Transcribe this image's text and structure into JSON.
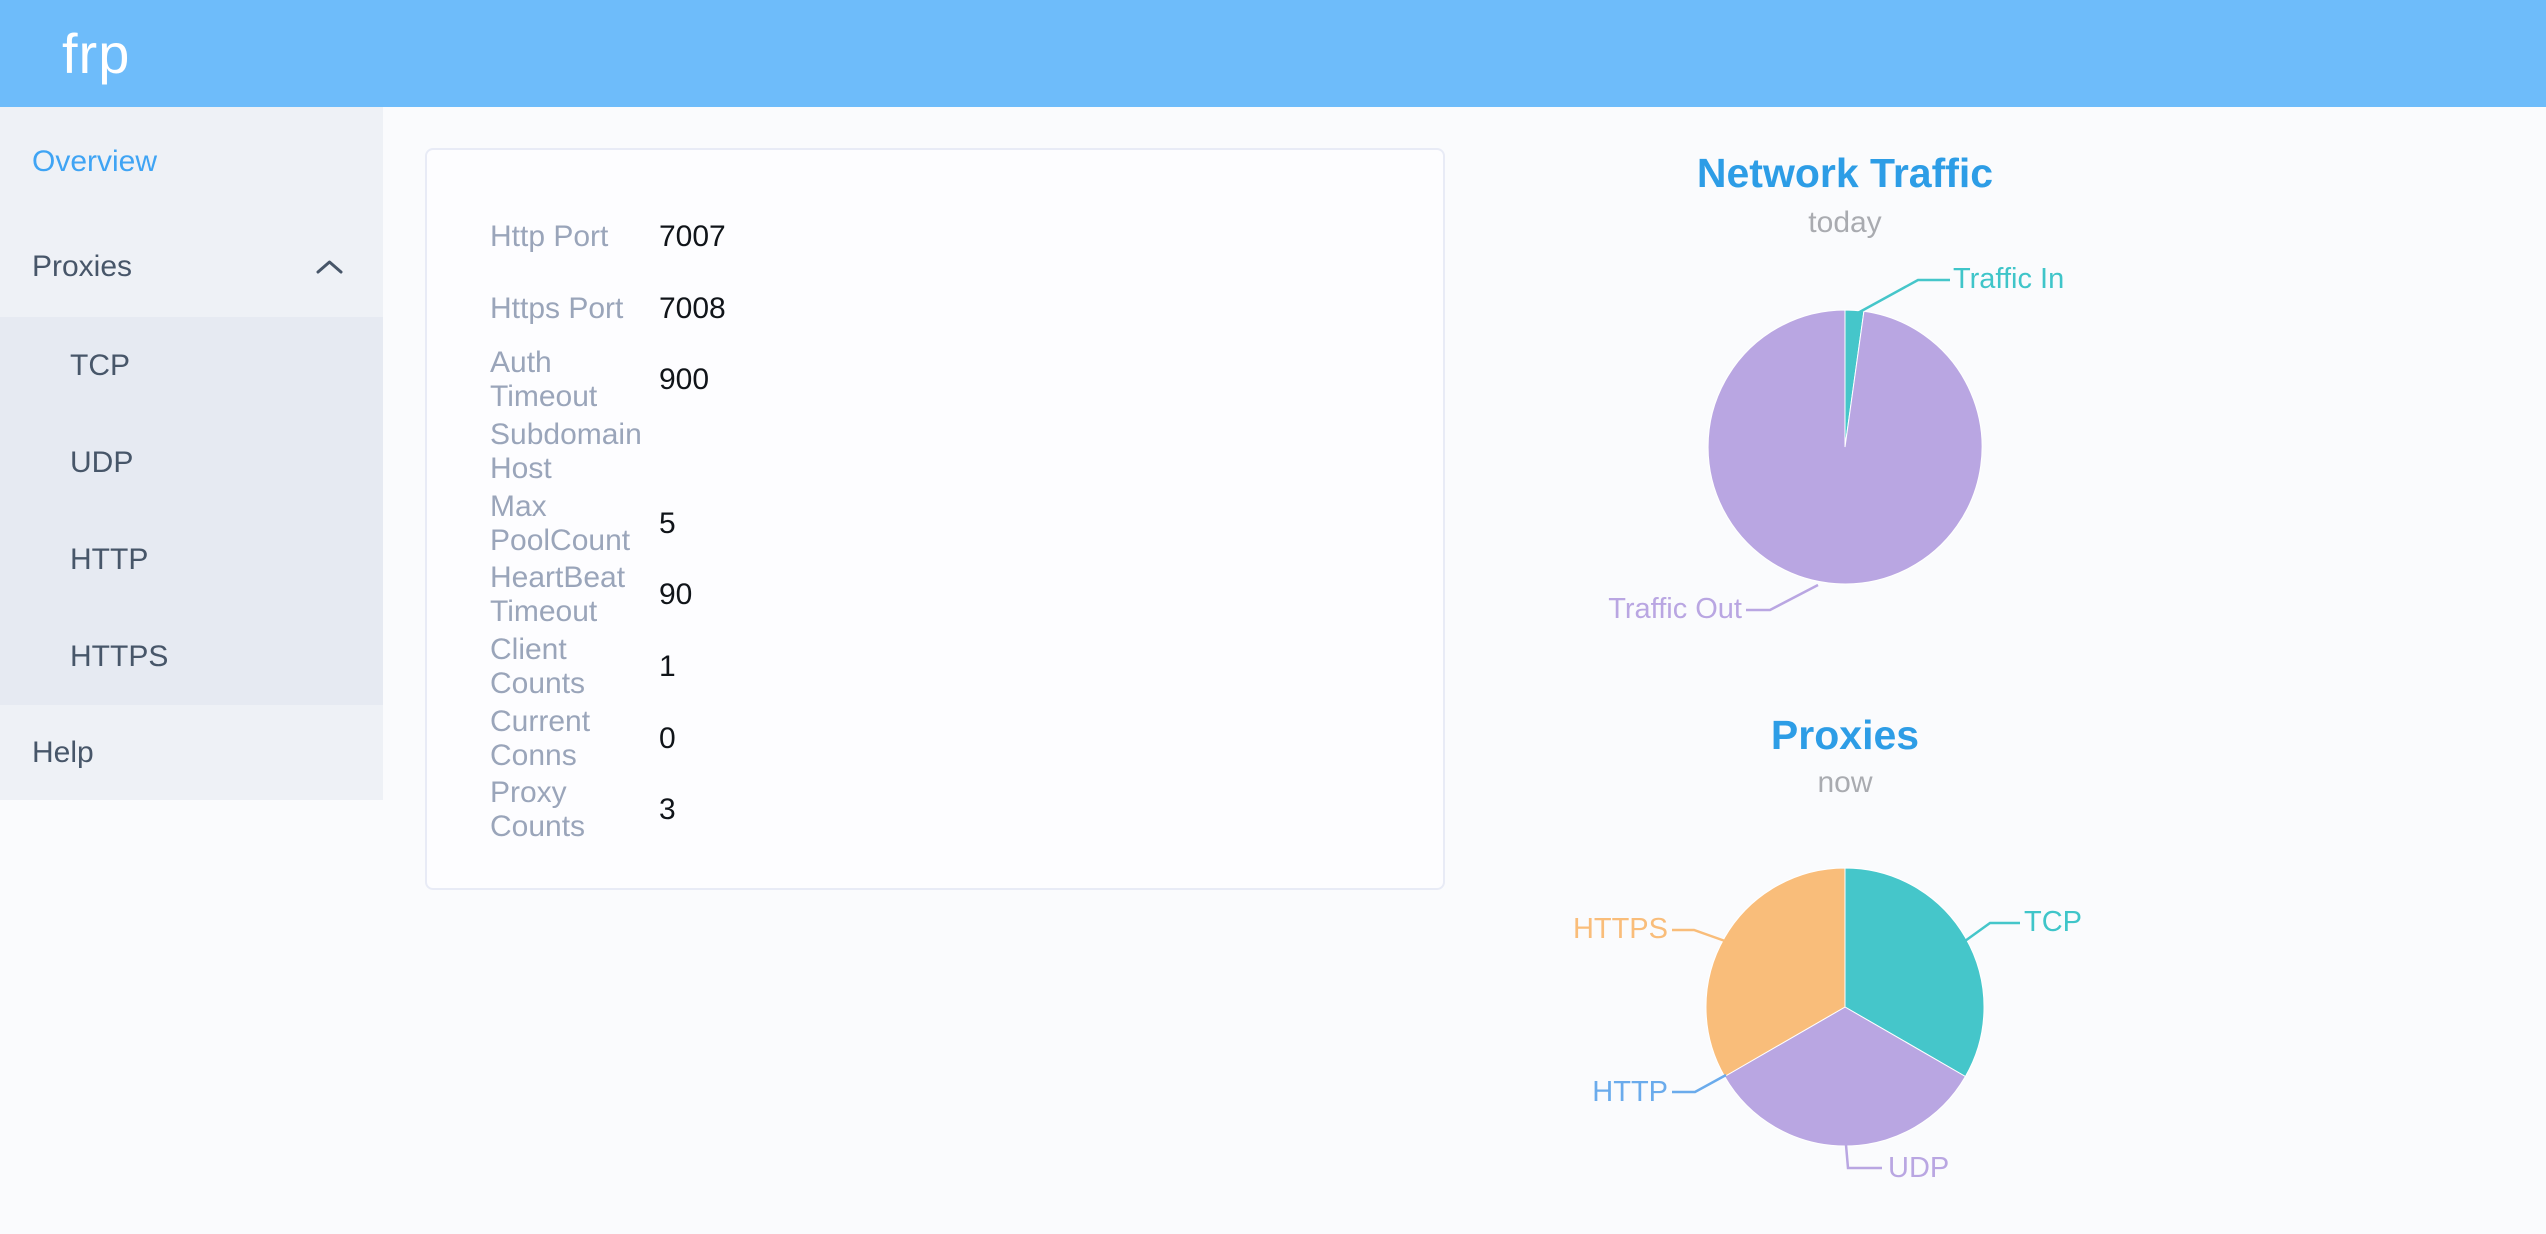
{
  "header": {
    "logo": "frp"
  },
  "sidebar": {
    "items": [
      {
        "label": "Overview",
        "active": true
      },
      {
        "label": "Proxies",
        "expanded": true
      },
      {
        "label": "TCP"
      },
      {
        "label": "UDP"
      },
      {
        "label": "HTTP"
      },
      {
        "label": "HTTPS"
      },
      {
        "label": "Help"
      }
    ]
  },
  "server_info": {
    "rows": [
      {
        "label": "Http Port",
        "value": "7007"
      },
      {
        "label": "Https Port",
        "value": "7008"
      },
      {
        "label": "Auth Timeout",
        "value": "900"
      },
      {
        "label": "Subdomain Host",
        "value": ""
      },
      {
        "label": "Max PoolCount",
        "value": "5"
      },
      {
        "label": "HeartBeat Timeout",
        "value": "90"
      },
      {
        "label": "Client Counts",
        "value": "1"
      },
      {
        "label": "Current Conns",
        "value": "0"
      },
      {
        "label": "Proxy Counts",
        "value": "3"
      }
    ]
  },
  "chart_data": [
    {
      "type": "pie",
      "title": "Network Traffic",
      "subtitle": "today",
      "legend_position": "outside-leader-lines",
      "slices": [
        {
          "label": "Traffic In",
          "percent": 2.2,
          "color": "#45c6ca"
        },
        {
          "label": "Traffic Out",
          "percent": 97.8,
          "color": "#b9a6e2"
        }
      ]
    },
    {
      "type": "pie",
      "title": "Proxies",
      "subtitle": "now",
      "legend_position": "outside-leader-lines",
      "slices": [
        {
          "label": "TCP",
          "value": 1,
          "percent": 33.33,
          "color": "#45c6ca"
        },
        {
          "label": "UDP",
          "value": 1,
          "percent": 33.33,
          "color": "#b9a6e2"
        },
        {
          "label": "HTTP",
          "value": 0,
          "percent": 0,
          "color": "#6aabec"
        },
        {
          "label": "HTTPS",
          "value": 1,
          "percent": 33.33,
          "color": "#f9bd7a"
        }
      ]
    }
  ],
  "colors": {
    "header_bg": "#6ebcfa",
    "title_blue": "#2d9de6",
    "active_link_blue": "#3fa4f4",
    "teal": "#45c6ca",
    "purple": "#b9a6e2",
    "orange": "#f9bd7a",
    "http_blue": "#6aabec"
  }
}
